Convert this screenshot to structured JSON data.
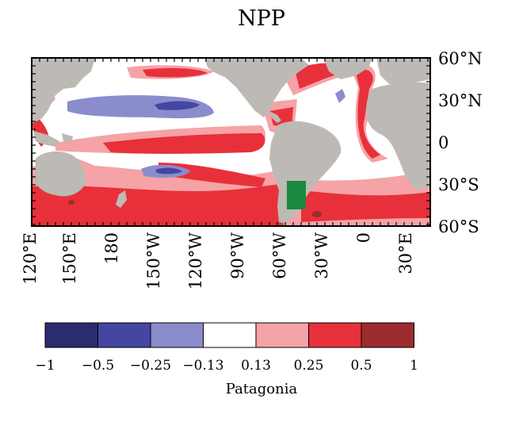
{
  "title": "NPP",
  "colorbar_label": "Patagonia",
  "lat_labels": [
    "60°N",
    "30°N",
    "0",
    "30°S",
    "60°S"
  ],
  "lon_labels": [
    "120°E",
    "150°E",
    "180",
    "150°W",
    "120°W",
    "90°W",
    "60°W",
    "30°W",
    "0",
    "30°E"
  ],
  "colorbar": {
    "boundaries": [
      "−1",
      "−0.5",
      "−0.25",
      "−0.13",
      "0.13",
      "0.25",
      "0.5",
      "1"
    ],
    "colors": [
      "#2b2c6e",
      "#4446a1",
      "#8a8ccc",
      "#ffffff",
      "#f5a3a6",
      "#e8303a",
      "#9c2b2e"
    ]
  },
  "colors": {
    "land": "#bdb9b5",
    "highlight_region": "#1a8a3e"
  }
}
